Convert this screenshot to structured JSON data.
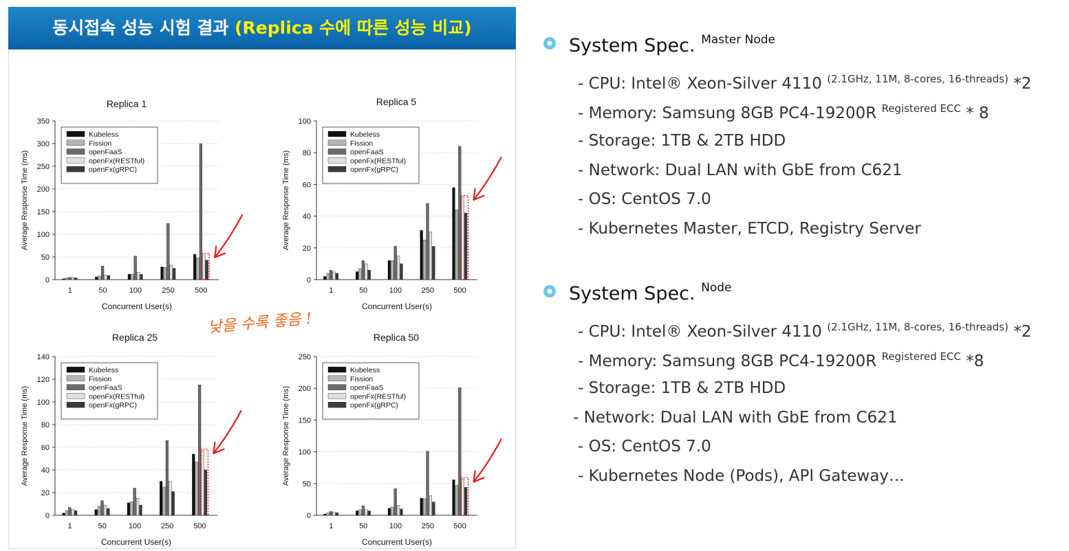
{
  "banner": {
    "title_main": "동시접속 성능 시험 결과 ",
    "title_highlight": "(Replica 수에 따른 성능 비교)"
  },
  "note": "낮을 수록 좋음 !",
  "colors": {
    "banner": "#0b62a8",
    "highlight": "#fff200",
    "annotation": "#e8641a",
    "arrow": "#e21e1e",
    "bullet": "#6ec6ef"
  },
  "chart_data": [
    {
      "type": "bar",
      "title": "Replica 1",
      "xlabel": "Concurrent User(s)",
      "ylabel": "Average Response Time (ms)",
      "ylim": [
        0,
        350
      ],
      "yticks": [
        0,
        50,
        100,
        150,
        200,
        250,
        300,
        350
      ],
      "categories": [
        "1",
        "50",
        "100",
        "250",
        "500"
      ],
      "legend_position": "top-left",
      "grid": true,
      "series": [
        {
          "name": "Kubeless",
          "color": "#111111",
          "values": [
            2,
            6,
            12,
            28,
            56
          ]
        },
        {
          "name": "Fission",
          "color": "#b5b5b5",
          "values": [
            4,
            8,
            12,
            27,
            48
          ]
        },
        {
          "name": "openFaaS",
          "color": "#6b6b6b",
          "values": [
            5,
            30,
            52,
            124,
            300
          ]
        },
        {
          "name": "openFx(RESTful)",
          "color": "#e0e0e0",
          "values": [
            5,
            10,
            16,
            32,
            55
          ]
        },
        {
          "name": "openFx(gRPC)",
          "color": "#3a3a3a",
          "values": [
            4,
            9,
            12,
            25,
            43
          ]
        }
      ]
    },
    {
      "type": "bar",
      "title": "Replica 5",
      "xlabel": "Concurrent User(s)",
      "ylabel": "Average Response Time (ms)",
      "ylim": [
        0,
        100
      ],
      "yticks": [
        0,
        20,
        40,
        60,
        80,
        100
      ],
      "categories": [
        "1",
        "50",
        "100",
        "250",
        "500"
      ],
      "legend_position": "top-left",
      "grid": true,
      "series": [
        {
          "name": "Kubeless",
          "color": "#111111",
          "values": [
            2,
            5,
            12,
            31,
            58
          ]
        },
        {
          "name": "Fission",
          "color": "#b5b5b5",
          "values": [
            4,
            7,
            12,
            25,
            44
          ]
        },
        {
          "name": "openFaaS",
          "color": "#6b6b6b",
          "values": [
            6,
            12,
            21,
            48,
            84
          ]
        },
        {
          "name": "openFx(RESTful)",
          "color": "#e0e0e0",
          "values": [
            5,
            10,
            15,
            30,
            52
          ]
        },
        {
          "name": "openFx(gRPC)",
          "color": "#3a3a3a",
          "values": [
            4,
            6,
            10,
            21,
            42
          ]
        }
      ]
    },
    {
      "type": "bar",
      "title": "Replica 25",
      "xlabel": "Concurrent User(s)",
      "ylabel": "Average Response Time (ms)",
      "ylim": [
        0,
        140
      ],
      "yticks": [
        0,
        20,
        40,
        60,
        80,
        100,
        120,
        140
      ],
      "categories": [
        "1",
        "50",
        "100",
        "250",
        "500"
      ],
      "legend_position": "top-left",
      "grid": true,
      "series": [
        {
          "name": "Kubeless",
          "color": "#111111",
          "values": [
            2,
            5,
            11,
            30,
            54
          ]
        },
        {
          "name": "Fission",
          "color": "#b5b5b5",
          "values": [
            4,
            8,
            12,
            25,
            47
          ]
        },
        {
          "name": "openFaaS",
          "color": "#6b6b6b",
          "values": [
            7,
            13,
            24,
            66,
            115
          ]
        },
        {
          "name": "openFx(RESTful)",
          "color": "#e0e0e0",
          "values": [
            5,
            9,
            15,
            30,
            57
          ]
        },
        {
          "name": "openFx(gRPC)",
          "color": "#3a3a3a",
          "values": [
            4,
            6,
            9,
            21,
            40
          ]
        }
      ]
    },
    {
      "type": "bar",
      "title": "Replica 50",
      "xlabel": "Concurrent User(s)",
      "ylabel": "Average Response Time (ms)",
      "ylim": [
        0,
        250
      ],
      "yticks": [
        0,
        50,
        100,
        150,
        200,
        250
      ],
      "categories": [
        "1",
        "50",
        "100",
        "250",
        "500"
      ],
      "legend_position": "top-left",
      "grid": true,
      "series": [
        {
          "name": "Kubeless",
          "color": "#111111",
          "values": [
            2,
            7,
            11,
            27,
            56
          ]
        },
        {
          "name": "Fission",
          "color": "#b5b5b5",
          "values": [
            4,
            9,
            13,
            26,
            47
          ]
        },
        {
          "name": "openFaaS",
          "color": "#6b6b6b",
          "values": [
            6,
            15,
            42,
            101,
            201
          ]
        },
        {
          "name": "openFx(RESTful)",
          "color": "#e0e0e0",
          "values": [
            5,
            9,
            16,
            31,
            57
          ]
        },
        {
          "name": "openFx(gRPC)",
          "color": "#3a3a3a",
          "values": [
            4,
            7,
            10,
            21,
            44
          ]
        }
      ]
    }
  ],
  "specs": [
    {
      "title": "System Spec.",
      "title_sup": "Master Node",
      "items": [
        {
          "text": "- CPU: Intel® Xeon-Silver 4110 ",
          "sup": "(2.1GHz, 11M, 8-cores, 16-threads)",
          "tail": " *2"
        },
        {
          "text": "- Memory: Samsung 8GB PC4-19200R ",
          "sup": "Registered ECC",
          "tail": "  * 8"
        },
        {
          "text": "- Storage: 1TB & 2TB HDD"
        },
        {
          "text": "- Network: Dual LAN with GbE from C621"
        },
        {
          "text": "- OS: CentOS 7.0"
        },
        {
          "text": "- Kubernetes Master, ETCD, Registry Server"
        }
      ]
    },
    {
      "title": "System Spec.",
      "title_sup": "Node",
      "items": [
        {
          "text": "- CPU: Intel® Xeon-Silver 4110 ",
          "sup": "(2.1GHz, 11M, 8-cores, 16-threads)",
          "tail": " *2"
        },
        {
          "text": "- Memory: Samsung 8GB PC4-19200R ",
          "sup": "Registered ECC",
          "tail": "   *8"
        },
        {
          "text": "- Storage: 1TB & 2TB HDD"
        },
        {
          "text": "- Network: Dual LAN with GbE from C621"
        },
        {
          "text": "- OS: CentOS 7.0"
        },
        {
          "text": "- Kubernetes Node (Pods), API Gateway…"
        }
      ]
    }
  ]
}
